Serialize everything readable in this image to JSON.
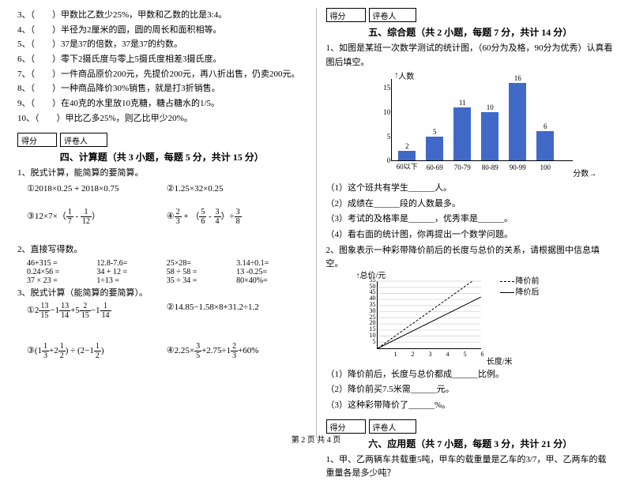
{
  "left": {
    "tf": [
      {
        "n": "3、",
        "t": "（　　）甲数比乙数少25%，甲数和乙数的比是3:4。"
      },
      {
        "n": "4、",
        "t": "（　　）半径为2厘米的圆，圆的周长和面积相等。"
      },
      {
        "n": "5、",
        "t": "（　　）37是37的倍数，37是37的约数。"
      },
      {
        "n": "6、",
        "t": "（　　）零下2摄氏度与零上5摄氏度相差3摄氏度。"
      },
      {
        "n": "7、",
        "t": "（　　）一件商品原价200元，先提价200元，再八折出售，仍卖200元。"
      },
      {
        "n": "8、",
        "t": "（　　）一种商品降价30%销售，就是打3折销售。"
      },
      {
        "n": "9、",
        "t": "（　　）在40克的水里放10克糖，糖占糖水的1/5。"
      },
      {
        "n": "10、",
        "t": "（　　）甲比乙多25%，则乙比甲少20%。"
      }
    ],
    "scorers": [
      "得分",
      "评卷人"
    ],
    "sec4": "四、计算题（共 3 小题，每题 5 分，共计 15 分）",
    "q1": "1、脱式计算，能简算的要简算。",
    "e1": "①2018×0.25 + 2018×0.75",
    "e2": "②1.25×32×0.25",
    "e3l": "③12×7×（",
    "e3f1": {
      "n": "1",
      "d": "7"
    },
    "e3m": " - ",
    "e3f2": {
      "n": "1",
      "d": "12"
    },
    "e3r": "）",
    "e4l": "④",
    "e4f1": {
      "n": "2",
      "d": "3"
    },
    "e4m1": " + （",
    "e4f2": {
      "n": "5",
      "d": "6"
    },
    "e4m2": " - ",
    "e4f3": {
      "n": "3",
      "d": "4"
    },
    "e4m3": "）÷",
    "e4f4": {
      "n": "3",
      "d": "8"
    },
    "q2": "2、直接写得数。",
    "r2a": [
      "46+315 =",
      "12.8-7.6=",
      "25×28=",
      "3.14÷0.1="
    ],
    "r2b": [
      "0.24×56 =",
      "34 + 12 =",
      "58 ÷ 58 =",
      "13 -0.25="
    ],
    "r2c": [
      "37 × 23 =",
      "1÷13  =",
      "35 ÷ 34 =",
      "80×40%="
    ],
    "q3": "3、脱式计算（能简算的要简算）。",
    "e5": {
      "pre": "①2",
      "f1": {
        "n": "13",
        "d": "15"
      },
      "m1": "−1",
      "f2": {
        "n": "13",
        "d": "14"
      },
      "m2": "+5",
      "f3": {
        "n": "2",
        "d": "15"
      },
      "m3": "−1",
      "f4": {
        "n": "1",
        "d": "14"
      }
    },
    "e6": "②14.85−1.58×8+31.2÷1.2",
    "e7": {
      "pre": "③(1",
      "f1": {
        "n": "1",
        "d": "3"
      },
      "m1": "+2",
      "f2": {
        "n": "1",
        "d": "2"
      },
      "m2": ") ÷ (2−1",
      "f3": {
        "n": "1",
        "d": "2"
      },
      "r": ")"
    },
    "e8": {
      "pre": "④2.25×",
      "f1": {
        "n": "3",
        "d": "5"
      },
      "m1": "+2.75÷1",
      "f2": {
        "n": "2",
        "d": "3"
      },
      "r": "+60%"
    }
  },
  "right": {
    "scorers": [
      "得分",
      "评卷人"
    ],
    "sec5": "五、综合题（共 2 小题，每题 7 分，共计 14 分）",
    "q1": "1、如图是某班一次数学测试的统计图，（60分为及格，90分为优秀）认真看图后填空。",
    "chart": {
      "ylabel": "人数",
      "xlabel": "分数",
      "yticks": [
        0,
        5,
        10,
        15
      ],
      "ymax": 17,
      "cats": [
        "60以下",
        "60-69",
        "70-79",
        "80-89",
        "90-99",
        "100"
      ],
      "vals": [
        2,
        5,
        11,
        10,
        16,
        6
      ],
      "barColor": "#4169c8",
      "barWidth": 22,
      "gap": 35
    },
    "subs1": [
      "（1）这个班共有学生______人。",
      "（2）成绩在______段的人数最多。",
      "（3）考试的及格率是______，优秀率是______。",
      "（4）看右面的统计图，你再提出一个数学问题。"
    ],
    "q2": "2、图象表示一种彩带降价前后的长度与总价的关系，请根据图中信息填空。",
    "lchart": {
      "ylabel": "总价/元",
      "xlabel": "长度/米",
      "yticks": [
        5,
        10,
        15,
        20,
        25,
        30,
        35,
        40,
        45,
        50,
        55
      ],
      "xticks": [
        1,
        2,
        3,
        4,
        5,
        6
      ],
      "leg1": "降价前",
      "leg2": "降价后"
    },
    "subs2": [
      "（1）降价前后，长度与总价都成______比例。",
      "（2）降价前买7.5米需______元。",
      "（3）这种彩带降价了______%。"
    ],
    "sec6": "六、应用题（共 7 小题，每题 3 分，共计 21 分）",
    "q6_1": "1、甲、乙两辆车共载重5吨，甲车的载重量是乙车的3/7，甲、乙两车的载重量各是多少吨？"
  },
  "footer": "第 2 页  共 4 页"
}
